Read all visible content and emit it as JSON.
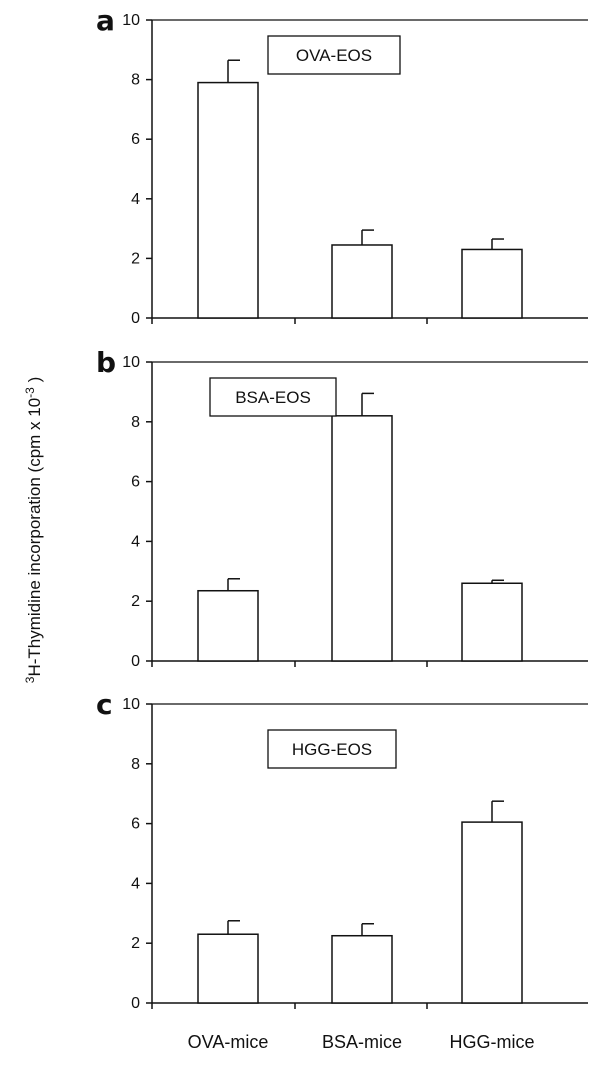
{
  "chart_data": [
    {
      "type": "bar",
      "panel_letter": "a",
      "label_box": "OVA-EOS",
      "categories": [
        "OVA-mice",
        "BSA-mice",
        "HGG-mice"
      ],
      "values": [
        7.9,
        2.45,
        2.3
      ],
      "error_upper": [
        0.75,
        0.5,
        0.35
      ],
      "ylim": [
        0,
        10
      ],
      "yticks": [
        "0",
        "2",
        "4",
        "6",
        "8",
        "10"
      ]
    },
    {
      "type": "bar",
      "panel_letter": "b",
      "label_box": "BSA-EOS",
      "categories": [
        "OVA-mice",
        "BSA-mice",
        "HGG-mice"
      ],
      "values": [
        2.35,
        8.2,
        2.6
      ],
      "error_upper": [
        0.4,
        0.75,
        0.1
      ],
      "ylim": [
        0,
        10
      ],
      "yticks": [
        "0",
        "2",
        "4",
        "6",
        "8",
        "10"
      ]
    },
    {
      "type": "bar",
      "panel_letter": "c",
      "label_box": "HGG-EOS",
      "categories": [
        "OVA-mice",
        "BSA-mice",
        "HGG-mice"
      ],
      "values": [
        2.3,
        2.25,
        6.05
      ],
      "error_upper": [
        0.45,
        0.4,
        0.7
      ],
      "ylim": [
        0,
        10
      ],
      "yticks": [
        "0",
        "2",
        "4",
        "6",
        "8",
        "10"
      ]
    }
  ],
  "ylabel": {
    "sup1": "3",
    "main": "H-Thymidine incorporation (cpm x 10",
    "sup2": "-3",
    "tail": " )"
  },
  "xcategories": [
    "OVA-mice",
    "BSA-mice",
    "HGG-mice"
  ]
}
